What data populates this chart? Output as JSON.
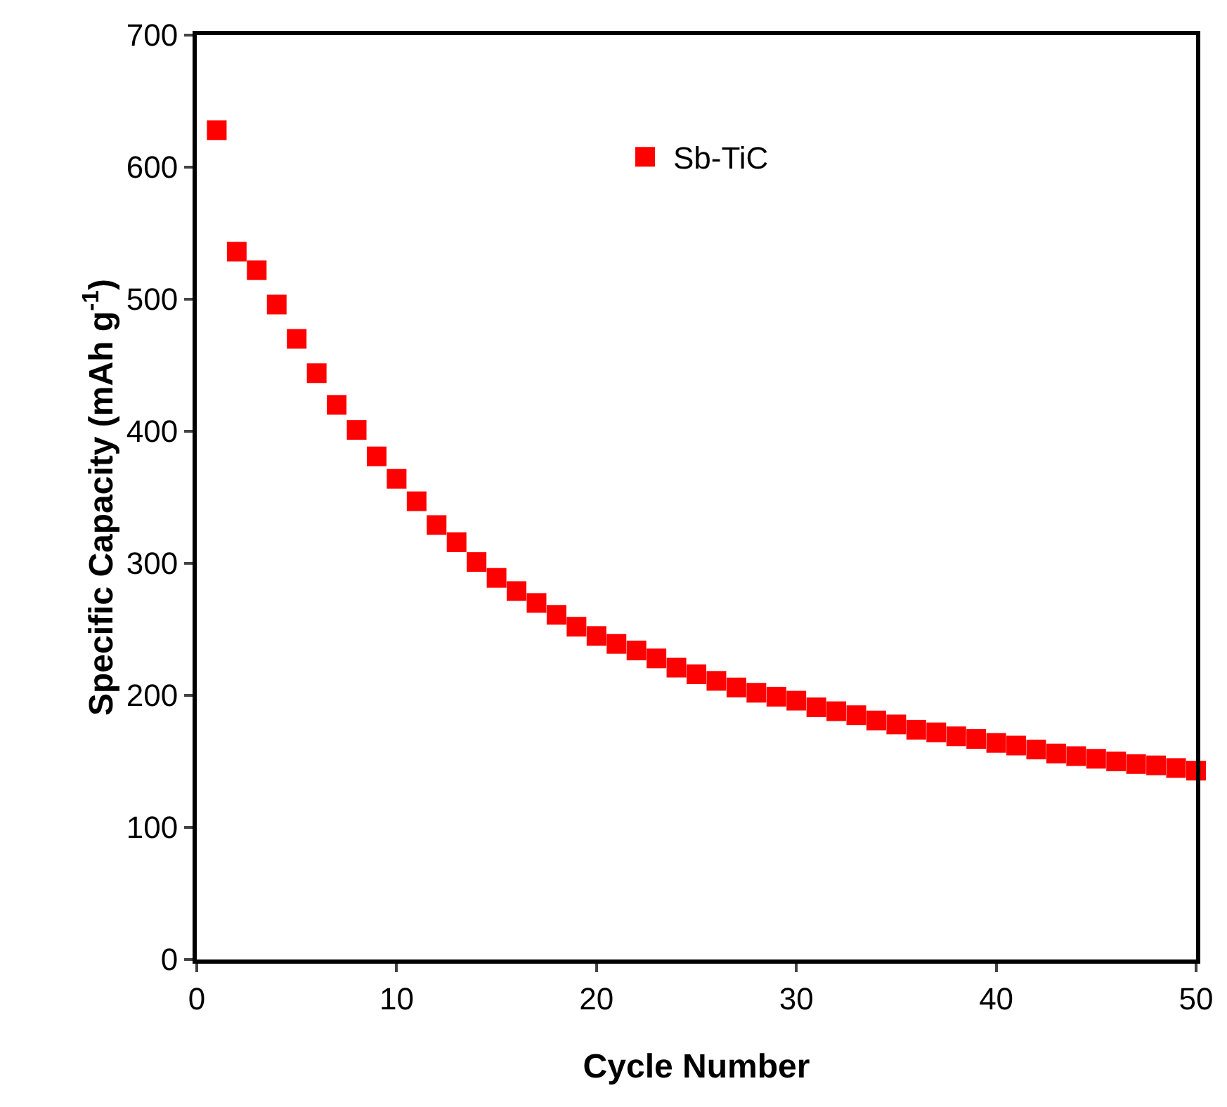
{
  "chart_data": {
    "type": "scatter",
    "xlabel": "Cycle Number",
    "ylabel": "Specific Capacity (mAh g$^{-1}$)",
    "x": [
      1,
      2,
      3,
      4,
      5,
      6,
      7,
      8,
      9,
      10,
      11,
      12,
      13,
      14,
      15,
      16,
      17,
      18,
      19,
      20,
      21,
      22,
      23,
      24,
      25,
      26,
      27,
      28,
      29,
      30,
      31,
      32,
      33,
      34,
      35,
      36,
      37,
      38,
      39,
      40,
      41,
      42,
      43,
      44,
      45,
      46,
      47,
      48,
      49,
      50
    ],
    "series": [
      {
        "name": "Sb-TiC",
        "color": "#ff0000",
        "values": [
          628,
          536,
          522,
          496,
          470,
          444,
          420,
          401,
          381,
          364,
          347,
          329,
          316,
          301,
          289,
          279,
          270,
          261,
          252,
          245,
          239,
          234,
          228,
          221,
          216,
          211,
          206,
          202,
          199,
          196,
          191,
          188,
          185,
          181,
          178,
          174,
          172,
          169,
          167,
          164,
          162,
          159,
          156,
          154,
          152,
          150,
          148,
          147,
          145,
          143
        ]
      }
    ],
    "xlim": [
      0,
      50
    ],
    "xticks": [
      0,
      10,
      20,
      30,
      40,
      50
    ],
    "ylim": [
      0,
      700
    ],
    "yticks": [
      0,
      100,
      200,
      300,
      400,
      500,
      600,
      700
    ],
    "grid": false,
    "legend": "top",
    "marker": "square"
  }
}
